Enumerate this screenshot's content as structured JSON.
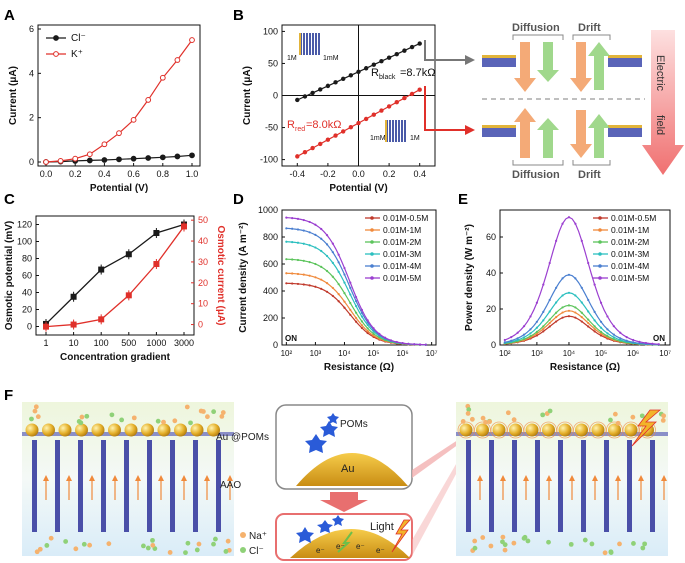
{
  "panel_labels": {
    "a": "A",
    "b": "B",
    "c": "C",
    "d": "D",
    "e": "E",
    "f": "F"
  },
  "colors": {
    "black": "#1a1a1a",
    "red": "#e0302a",
    "orange": "#f08a3c",
    "green": "#6cbf4a",
    "blue": "#4a5aa8",
    "pink": "#f3a0a0",
    "gold": "#d9a520"
  },
  "chart_data": [
    {
      "id": "A",
      "type": "line",
      "xlabel": "Potential (V)",
      "ylabel": "Current (μA)",
      "xlim": [
        0.0,
        1.0
      ],
      "ylim": [
        0,
        6
      ],
      "xticks": [
        "0.0",
        "0.2",
        "0.4",
        "0.6",
        "0.8",
        "1.0"
      ],
      "yticks": [
        "0",
        "2",
        "4",
        "6"
      ],
      "x": [
        0.0,
        0.1,
        0.2,
        0.3,
        0.4,
        0.5,
        0.6,
        0.7,
        0.8,
        0.9,
        1.0
      ],
      "series": [
        {
          "name": "Cl⁻",
          "color": "#1a1a1a",
          "values": [
            0.0,
            0.02,
            0.05,
            0.07,
            0.09,
            0.12,
            0.15,
            0.18,
            0.21,
            0.25,
            0.3
          ]
        },
        {
          "name": "K⁺",
          "color": "#e0302a",
          "values": [
            0.0,
            0.05,
            0.15,
            0.35,
            0.8,
            1.3,
            1.9,
            2.8,
            3.8,
            4.6,
            5.5
          ]
        }
      ]
    },
    {
      "id": "B",
      "type": "line",
      "xlabel": "Potential (V)",
      "ylabel": "Current (μA)",
      "xlim": [
        -0.5,
        0.5
      ],
      "ylim": [
        -110,
        110
      ],
      "xticks": [
        "-0.4",
        "-0.2",
        "0.0",
        "0.2",
        "0.4"
      ],
      "yticks": [
        "-100",
        "-50",
        "0",
        "50",
        "100"
      ],
      "x": [
        -0.4,
        -0.35,
        -0.3,
        -0.25,
        -0.2,
        -0.15,
        -0.1,
        -0.05,
        0.0,
        0.05,
        0.1,
        0.15,
        0.2,
        0.25,
        0.3,
        0.35,
        0.4
      ],
      "series": [
        {
          "name": "black",
          "color": "#1a1a1a",
          "values": [
            -7,
            -1.5,
            4,
            9.5,
            15,
            20.5,
            26,
            31.5,
            37,
            42.5,
            48,
            53.5,
            59,
            64.5,
            70,
            75.5,
            81
          ]
        },
        {
          "name": "red",
          "color": "#e0302a",
          "values": [
            -95,
            -88.5,
            -82,
            -75.5,
            -69,
            -62.5,
            -56,
            -49.5,
            -43,
            -36.5,
            -30,
            -23.5,
            -17,
            -10.5,
            -4,
            2.5,
            9
          ]
        }
      ],
      "annotations": {
        "r_black_prefix": "R",
        "r_black_sub": "black",
        "r_black_value": "=8.7kΩ",
        "r_red_prefix": "R",
        "r_red_sub": "red",
        "r_red_value": "=8.0kΩ",
        "inset_top_left": "1M",
        "inset_top_right": "1mM",
        "inset_bottom_left": "1mM",
        "inset_bottom_right": "1M"
      }
    },
    {
      "id": "C",
      "type": "line",
      "xlabel": "Concentration gradient",
      "ylabel_left": "Osmotic potential (mV)",
      "ylabel_right": "Osmotic current (μA)",
      "categories": [
        "1",
        "10",
        "100",
        "500",
        "1000",
        "3000"
      ],
      "ylim_left": [
        -10,
        130
      ],
      "ylim_right": [
        -5,
        52
      ],
      "yticks_left": [
        "0",
        "20",
        "40",
        "60",
        "80",
        "100",
        "120"
      ],
      "yticks_right": [
        "0",
        "10",
        "20",
        "30",
        "40",
        "50"
      ],
      "series": [
        {
          "name": "Osmotic potential",
          "axis": "left",
          "color": "#1a1a1a",
          "values": [
            3,
            35,
            67,
            85,
            110,
            120
          ]
        },
        {
          "name": "Osmotic current",
          "axis": "right",
          "color": "#e0302a",
          "values": [
            -1,
            0,
            2.5,
            14,
            29,
            47
          ]
        }
      ]
    },
    {
      "id": "D",
      "type": "line",
      "xlabel": "Resistance (Ω)",
      "ylabel": "Current density (A m⁻²)",
      "xscale": "log",
      "xlim_log10": [
        2,
        7
      ],
      "ylim": [
        0,
        1000
      ],
      "xticks": [
        "10²",
        "10³",
        "10⁴",
        "10⁵",
        "10⁶",
        "10⁷"
      ],
      "yticks": [
        "0",
        "200",
        "400",
        "600",
        "800",
        "1000"
      ],
      "on_label": "ON",
      "series": [
        {
          "name": "0.01M-0.5M",
          "color": "#c0392b",
          "i0": 460,
          "r0": 15000
        },
        {
          "name": "0.01M-1M",
          "color": "#f08a3c",
          "i0": 535,
          "r0": 15000
        },
        {
          "name": "0.01M-2M",
          "color": "#5cc45c",
          "i0": 640,
          "r0": 15000
        },
        {
          "name": "0.01M-3M",
          "color": "#2bbfbf",
          "i0": 770,
          "r0": 15000
        },
        {
          "name": "0.01M-4M",
          "color": "#4a7fd0",
          "i0": 870,
          "r0": 15000
        },
        {
          "name": "0.01M-5M",
          "color": "#9b3fd0",
          "i0": 950,
          "r0": 15000
        }
      ]
    },
    {
      "id": "E",
      "type": "line",
      "xlabel": "Resistance (Ω)",
      "ylabel": "Power density (W m⁻²)",
      "xscale": "log",
      "xlim_log10": [
        2,
        7
      ],
      "ylim": [
        0,
        75
      ],
      "xticks": [
        "10²",
        "10³",
        "10⁴",
        "10⁵",
        "10⁶",
        "10⁷"
      ],
      "yticks": [
        "0",
        "20",
        "40",
        "60"
      ],
      "on_label": "ON",
      "series": [
        {
          "name": "0.01M-0.5M",
          "color": "#c0392b",
          "peak": 16
        },
        {
          "name": "0.01M-1M",
          "color": "#f08a3c",
          "peak": 19
        },
        {
          "name": "0.01M-2M",
          "color": "#5cc45c",
          "peak": 22
        },
        {
          "name": "0.01M-3M",
          "color": "#2bbfbf",
          "peak": 29
        },
        {
          "name": "0.01M-4M",
          "color": "#4a7fd0",
          "peak": 39
        },
        {
          "name": "0.01M-5M",
          "color": "#9b3fd0",
          "peak": 71
        }
      ]
    }
  ],
  "schematic_b": {
    "diffusion_top": "Diffusion",
    "drift_top": "Drift",
    "diffusion_bottom": "Diffusion",
    "drift_bottom": "Drift",
    "field_label_1": "Electric",
    "field_label_2": "field"
  },
  "schematic_f": {
    "label_au_poms": "Au @POMs",
    "label_aao": "AAO",
    "legend_na": "Na⁺",
    "legend_cl": "Cl⁻",
    "bubble_poms": "POMs",
    "bubble_au": "Au",
    "bubble_light": "Light",
    "electron_label": "e⁻"
  }
}
